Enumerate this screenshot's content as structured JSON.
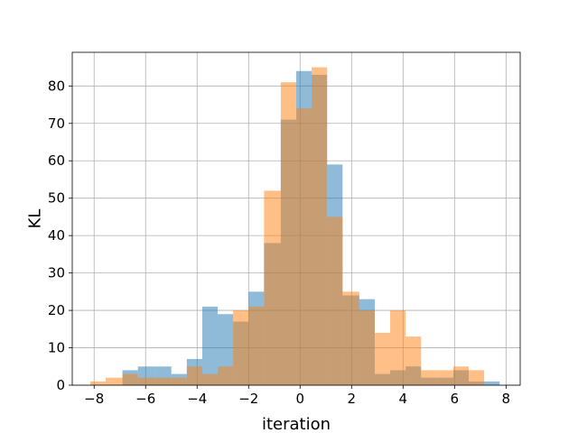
{
  "chart_data": {
    "type": "bar",
    "subtype": "overlaid-histogram",
    "title": "",
    "xlabel": "iteration",
    "ylabel": "KL",
    "xlim": [
      -8.85,
      8.55
    ],
    "ylim": [
      0,
      89
    ],
    "xticks": [
      -8,
      -6,
      -4,
      -2,
      0,
      2,
      4,
      6,
      8
    ],
    "xtick_labels": [
      "−8",
      "−6",
      "−4",
      "−2",
      "0",
      "2",
      "4",
      "6",
      "8"
    ],
    "yticks": [
      0,
      10,
      20,
      30,
      40,
      50,
      60,
      70,
      80
    ],
    "grid": true,
    "legend": "none",
    "series": [
      {
        "color": "#1f77b4",
        "alpha": 0.5,
        "bins": [
          [
            -6.9,
            -6.3,
            4
          ],
          [
            -6.3,
            -5.65,
            5
          ],
          [
            -5.65,
            -5.0,
            5
          ],
          [
            -5.0,
            -4.4,
            3
          ],
          [
            -4.4,
            -3.8,
            7
          ],
          [
            -3.8,
            -3.2,
            21
          ],
          [
            -3.2,
            -2.6,
            19
          ],
          [
            -2.6,
            -2.0,
            17
          ],
          [
            -2.0,
            -1.4,
            25
          ],
          [
            -1.4,
            -0.75,
            38
          ],
          [
            -0.75,
            -0.15,
            71
          ],
          [
            -0.15,
            0.45,
            84
          ],
          [
            0.45,
            1.05,
            83
          ],
          [
            1.05,
            1.65,
            59
          ],
          [
            1.65,
            2.3,
            24
          ],
          [
            2.3,
            2.9,
            23
          ],
          [
            2.9,
            3.5,
            3
          ],
          [
            3.5,
            4.1,
            4
          ],
          [
            4.1,
            4.7,
            5
          ],
          [
            4.7,
            5.3,
            2
          ],
          [
            5.3,
            5.95,
            2
          ],
          [
            5.95,
            6.55,
            4
          ],
          [
            6.55,
            7.15,
            1
          ],
          [
            7.15,
            7.75,
            1
          ]
        ]
      },
      {
        "color": "#ff7f0e",
        "alpha": 0.5,
        "bins": [
          [
            -8.15,
            -7.55,
            1
          ],
          [
            -7.55,
            -6.9,
            2
          ],
          [
            -6.9,
            -6.3,
            3
          ],
          [
            -6.3,
            -5.65,
            2
          ],
          [
            -5.65,
            -5.0,
            2
          ],
          [
            -5.0,
            -4.4,
            2
          ],
          [
            -4.4,
            -3.8,
            5
          ],
          [
            -3.8,
            -3.2,
            3
          ],
          [
            -3.2,
            -2.6,
            5
          ],
          [
            -2.6,
            -2.0,
            20
          ],
          [
            -2.0,
            -1.4,
            21
          ],
          [
            -1.4,
            -0.75,
            52
          ],
          [
            -0.75,
            -0.15,
            81
          ],
          [
            -0.15,
            0.45,
            74
          ],
          [
            0.45,
            1.05,
            85
          ],
          [
            1.05,
            1.65,
            45
          ],
          [
            1.65,
            2.3,
            25
          ],
          [
            2.3,
            2.9,
            20
          ],
          [
            2.9,
            3.5,
            14
          ],
          [
            3.5,
            4.1,
            20
          ],
          [
            4.1,
            4.7,
            13
          ],
          [
            4.7,
            5.3,
            4
          ],
          [
            5.3,
            5.95,
            4
          ],
          [
            5.95,
            6.55,
            5
          ],
          [
            6.55,
            7.15,
            4
          ]
        ]
      }
    ]
  }
}
